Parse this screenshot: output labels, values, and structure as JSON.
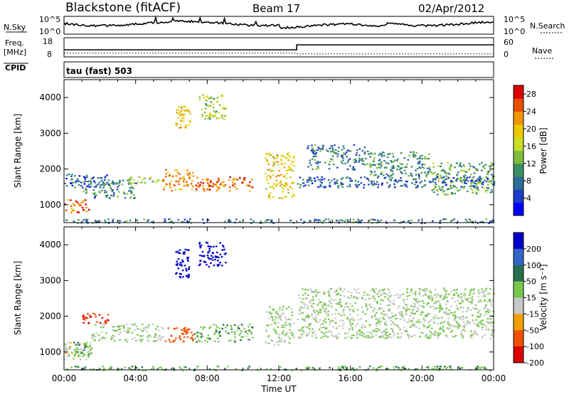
{
  "header": {
    "station": "Blackstone (fitACF)",
    "beam": "Beam 17",
    "date": "02/Apr/2012"
  },
  "noise_panel": {
    "left_label": "N.Sky",
    "left_top_tick": "10^5",
    "left_bottom_tick": "10^0",
    "right_top_tick": "10^5",
    "right_bottom_tick": "10^0",
    "right_label": "N.Search"
  },
  "freq_panel": {
    "left_label_1": "Freq.",
    "left_label_2": "[MHz]",
    "left_top_tick": "18",
    "left_bottom_tick": "8",
    "right_top_tick": "60",
    "right_bottom_tick": "0",
    "right_label": "Nave",
    "freq_step_time_hours": 13.0,
    "nave_before": 16,
    "nave_after": 52
  },
  "cpid": {
    "label": "CPID",
    "value": "tau (fast) 503"
  },
  "chart_data": [
    {
      "type": "heatmap",
      "name": "power",
      "ylabel": "Slant Range [km]",
      "xlabel": "Time UT",
      "xlim": [
        0,
        24
      ],
      "ylim": [
        500,
        4500
      ],
      "x_ticks": [
        "00:00",
        "04:00",
        "08:00",
        "12:00",
        "16:00",
        "20:00",
        "00:00"
      ],
      "y_ticks": [
        "1000",
        "2000",
        "3000",
        "4000"
      ],
      "colorbar": {
        "label": "Power [dB]",
        "ticks": [
          "4",
          "8",
          "12",
          "16",
          "20",
          "24",
          "28"
        ],
        "range": [
          0,
          30
        ],
        "colors": [
          "#0000ff",
          "#1e3cc8",
          "#2d6e96",
          "#3c9064",
          "#7dbe3c",
          "#c8dc28",
          "#f0c800",
          "#f09600",
          "#e65000",
          "#dc0000"
        ]
      },
      "echo_regions": [
        {
          "t0": 0.0,
          "t1": 1.5,
          "r0": 800,
          "r1": 1200,
          "p": 24
        },
        {
          "t0": 1.0,
          "t1": 4.0,
          "r0": 1200,
          "r1": 1700,
          "p": 10
        },
        {
          "t0": 0.0,
          "t1": 2.5,
          "r0": 1500,
          "r1": 1900,
          "p": 6
        },
        {
          "t0": 3.5,
          "t1": 5.5,
          "r0": 1600,
          "r1": 1800,
          "p": 14
        },
        {
          "t0": 5.5,
          "t1": 7.2,
          "r0": 1400,
          "r1": 2000,
          "p": 22
        },
        {
          "t0": 7.2,
          "t1": 10.5,
          "r0": 1400,
          "r1": 1800,
          "p": 24
        },
        {
          "t0": 6.2,
          "t1": 7.0,
          "r0": 3100,
          "r1": 3900,
          "p": 20
        },
        {
          "t0": 7.5,
          "t1": 9.0,
          "r0": 3400,
          "r1": 4100,
          "p": 16
        },
        {
          "t0": 11.2,
          "t1": 12.8,
          "r0": 1200,
          "r1": 2500,
          "p": 18
        },
        {
          "t0": 13.5,
          "t1": 17.0,
          "r0": 2000,
          "r1": 2700,
          "p": 8
        },
        {
          "t0": 17.0,
          "t1": 20.5,
          "r0": 1800,
          "r1": 2500,
          "p": 10
        },
        {
          "t0": 20.5,
          "t1": 24.0,
          "r0": 1300,
          "r1": 2200,
          "p": 12
        },
        {
          "t0": 13.0,
          "t1": 24.0,
          "r0": 1500,
          "r1": 1800,
          "p": 7
        },
        {
          "t0": 0.0,
          "t1": 24.0,
          "r0": 500,
          "r1": 620,
          "p": 8
        }
      ]
    },
    {
      "type": "heatmap",
      "name": "velocity",
      "ylabel": "Slant Range [km]",
      "xlabel": "Time UT",
      "xlim": [
        0,
        24
      ],
      "ylim": [
        500,
        4500
      ],
      "x_ticks": [
        "00:00",
        "04:00",
        "08:00",
        "12:00",
        "16:00",
        "20:00",
        "00:00"
      ],
      "y_ticks": [
        "1000",
        "2000",
        "3000",
        "4000"
      ],
      "colorbar": {
        "label": "Velocity [m s⁻¹]",
        "ticks": [
          "200",
          "100",
          "50",
          "15",
          "-15",
          "-50",
          "-100",
          "-200"
        ],
        "colors": [
          "#0000c8",
          "#3264c8",
          "#286e50",
          "#78c850",
          "#c8c8c8",
          "#f0a000",
          "#f05000",
          "#dc0000"
        ]
      },
      "echo_regions": [
        {
          "t0": 0.0,
          "t1": 1.5,
          "r0": 800,
          "r1": 1300,
          "v": -10
        },
        {
          "t0": 0.5,
          "t1": 1.5,
          "r0": 900,
          "r1": 1300,
          "v": 30
        },
        {
          "t0": 1.0,
          "t1": 2.5,
          "r0": 1800,
          "r1": 2100,
          "v": -150
        },
        {
          "t0": 1.5,
          "t1": 5.5,
          "r0": 1300,
          "r1": 1800,
          "v": 0
        },
        {
          "t0": 5.5,
          "t1": 7.2,
          "r0": 1300,
          "r1": 1700,
          "v": -120
        },
        {
          "t0": 7.2,
          "t1": 10.5,
          "r0": 1300,
          "r1": 1800,
          "v": 20
        },
        {
          "t0": 6.2,
          "t1": 7.0,
          "r0": 3100,
          "r1": 3900,
          "v": 180
        },
        {
          "t0": 7.5,
          "t1": 9.0,
          "r0": 3400,
          "r1": 4100,
          "v": 200
        },
        {
          "t0": 11.2,
          "t1": 12.8,
          "r0": 1200,
          "r1": 2300,
          "v": 0
        },
        {
          "t0": 13.0,
          "t1": 24.0,
          "r0": 1400,
          "r1": 2800,
          "v": 0
        },
        {
          "t0": 0.0,
          "t1": 24.0,
          "r0": 500,
          "r1": 620,
          "v": 30
        }
      ]
    }
  ]
}
